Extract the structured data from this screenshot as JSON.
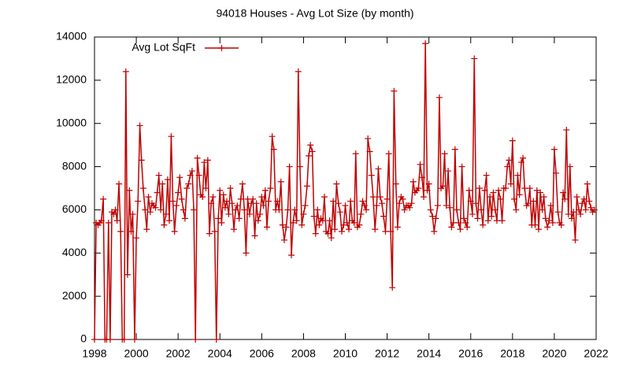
{
  "chart_data": {
    "type": "line",
    "title": "94018 Houses - Avg Lot Size (by month)",
    "xlim": [
      1998,
      2022
    ],
    "xticks": [
      1998,
      2000,
      2002,
      2004,
      2006,
      2008,
      2010,
      2012,
      2014,
      2016,
      2018,
      2020,
      2022
    ],
    "ylim": [
      0,
      14000
    ],
    "yticks": [
      0,
      2000,
      4000,
      6000,
      8000,
      10000,
      12000,
      14000
    ],
    "legend": "top left",
    "x": [
      1998,
      1998.08,
      1998.17,
      1998.25,
      1998.33,
      1998.42,
      1998.5,
      1998.58,
      1998.67,
      1998.75,
      1998.83,
      1998.92,
      1999,
      1999.08,
      1999.17,
      1999.25,
      1999.33,
      1999.42,
      1999.5,
      1999.58,
      1999.67,
      1999.75,
      1999.83,
      1999.92,
      2000,
      2000.08,
      2000.17,
      2000.25,
      2000.33,
      2000.42,
      2000.5,
      2000.58,
      2000.67,
      2000.75,
      2000.83,
      2000.92,
      2001,
      2001.08,
      2001.17,
      2001.25,
      2001.33,
      2001.42,
      2001.5,
      2001.58,
      2001.67,
      2001.75,
      2001.83,
      2001.92,
      2002,
      2002.08,
      2002.17,
      2002.25,
      2002.33,
      2002.42,
      2002.5,
      2002.58,
      2002.67,
      2002.75,
      2002.83,
      2002.92,
      2003,
      2003.08,
      2003.17,
      2003.25,
      2003.33,
      2003.42,
      2003.5,
      2003.58,
      2003.67,
      2003.75,
      2003.83,
      2003.92,
      2004,
      2004.08,
      2004.17,
      2004.25,
      2004.33,
      2004.42,
      2004.5,
      2004.58,
      2004.67,
      2004.75,
      2004.83,
      2004.92,
      2005,
      2005.08,
      2005.17,
      2005.25,
      2005.33,
      2005.42,
      2005.5,
      2005.58,
      2005.67,
      2005.75,
      2005.83,
      2005.92,
      2006,
      2006.08,
      2006.17,
      2006.25,
      2006.33,
      2006.42,
      2006.5,
      2006.58,
      2006.67,
      2006.75,
      2006.83,
      2006.92,
      2007,
      2007.08,
      2007.17,
      2007.25,
      2007.33,
      2007.42,
      2007.5,
      2007.58,
      2007.67,
      2007.75,
      2007.83,
      2007.92,
      2008,
      2008.08,
      2008.17,
      2008.25,
      2008.33,
      2008.42,
      2008.5,
      2008.58,
      2008.67,
      2008.75,
      2008.83,
      2008.92,
      2009,
      2009.08,
      2009.17,
      2009.25,
      2009.33,
      2009.42,
      2009.5,
      2009.58,
      2009.67,
      2009.75,
      2009.83,
      2009.92,
      2010,
      2010.08,
      2010.17,
      2010.25,
      2010.33,
      2010.42,
      2010.5,
      2010.58,
      2010.67,
      2010.75,
      2010.83,
      2010.92,
      2011,
      2011.08,
      2011.17,
      2011.25,
      2011.33,
      2011.42,
      2011.5,
      2011.58,
      2011.67,
      2011.75,
      2011.83,
      2011.92,
      2012,
      2012.08,
      2012.17,
      2012.25,
      2012.33,
      2012.42,
      2012.5,
      2012.58,
      2012.67,
      2012.75,
      2012.83,
      2012.92,
      2013,
      2013.08,
      2013.17,
      2013.25,
      2013.33,
      2013.42,
      2013.5,
      2013.58,
      2013.67,
      2013.75,
      2013.83,
      2013.92,
      2014,
      2014.08,
      2014.17,
      2014.25,
      2014.33,
      2014.42,
      2014.5,
      2014.58,
      2014.67,
      2014.75,
      2014.83,
      2014.92,
      2015,
      2015.08,
      2015.17,
      2015.25,
      2015.33,
      2015.42,
      2015.5,
      2015.58,
      2015.67,
      2015.75,
      2015.83,
      2015.92,
      2016,
      2016.08,
      2016.17,
      2016.25,
      2016.33,
      2016.42,
      2016.5,
      2016.58,
      2016.67,
      2016.75,
      2016.83,
      2016.92,
      2017,
      2017.08,
      2017.17,
      2017.25,
      2017.33,
      2017.42,
      2017.5,
      2017.58,
      2017.67,
      2017.75,
      2017.83,
      2017.92,
      2018,
      2018.08,
      2018.17,
      2018.25,
      2018.33,
      2018.42,
      2018.5,
      2018.58,
      2018.67,
      2018.75,
      2018.83,
      2018.92,
      2019,
      2019.08,
      2019.17,
      2019.25,
      2019.33,
      2019.42,
      2019.5,
      2019.58,
      2019.67,
      2019.75,
      2019.83,
      2019.92,
      2020,
      2020.08,
      2020.17,
      2020.25,
      2020.33,
      2020.42,
      2020.5,
      2020.58,
      2020.67,
      2020.75,
      2020.83,
      2020.92,
      2021,
      2021.08,
      2021.17,
      2021.25,
      2021.33,
      2021.42,
      2021.5,
      2021.58,
      2021.67,
      2021.75,
      2021.83,
      2021.92
    ],
    "series": [
      {
        "name": "Avg Lot SqFt",
        "color": "#c00000",
        "values": [
          0,
          5400,
          5300,
          5400,
          5500,
          6500,
          0,
          0,
          5400,
          0,
          5900,
          5800,
          6000,
          5500,
          7200,
          5000,
          0,
          0,
          12400,
          3000,
          6900,
          5000,
          5800,
          0,
          4700,
          6400,
          9900,
          8300,
          7000,
          6000,
          5100,
          6600,
          5900,
          6300,
          6200,
          6100,
          6800,
          7600,
          6000,
          7200,
          5300,
          5800,
          7400,
          5500,
          9400,
          6400,
          5000,
          6200,
          6800,
          7500,
          6500,
          6000,
          5600,
          7000,
          7200,
          7600,
          7800,
          6000,
          0,
          8400,
          7600,
          6700,
          6600,
          8200,
          7000,
          8300,
          4900,
          6300,
          6600,
          5000,
          0,
          5600,
          6900,
          5400,
          6700,
          6100,
          6400,
          5800,
          7000,
          6300,
          5100,
          6000,
          6200,
          5600,
          6500,
          7200,
          6000,
          4000,
          6500,
          5800,
          6300,
          6500,
          4800,
          6300,
          5500,
          5800,
          6600,
          6200,
          6900,
          5200,
          6400,
          7000,
          9400,
          8800,
          6000,
          6400,
          6000,
          7300,
          5300,
          4600,
          5200,
          6000,
          8000,
          3900,
          5400,
          6000,
          5500,
          12400,
          8000,
          5300,
          5800,
          6200,
          7100,
          8500,
          9000,
          8700,
          5700,
          4900,
          6000,
          5300,
          5600,
          5500,
          6600,
          5000,
          4900,
          5500,
          4700,
          6400,
          5100,
          7200,
          6300,
          5900,
          5000,
          5300,
          6200,
          5400,
          5100,
          6400,
          5500,
          5400,
          8600,
          5200,
          5300,
          5800,
          6400,
          6200,
          6000,
          9300,
          8700,
          7600,
          6600,
          5100,
          6200,
          7900,
          6600,
          6300,
          5700,
          5000,
          6500,
          8600,
          5000,
          2400,
          11500,
          7200,
          5200,
          6300,
          6600,
          6500,
          6000,
          6200,
          6200,
          6100,
          6300,
          7300,
          6800,
          6900,
          7000,
          8100,
          7500,
          6600,
          13700,
          6900,
          7200,
          6000,
          5700,
          5000,
          5600,
          6200,
          11200,
          7000,
          7100,
          8600,
          6200,
          7800,
          6100,
          5200,
          5400,
          8800,
          6000,
          5400,
          5100,
          8000,
          5600,
          5400,
          5200,
          6900,
          6400,
          5800,
          13000,
          6300,
          5600,
          7000,
          6000,
          5300,
          6900,
          7600,
          5500,
          6600,
          5700,
          6800,
          6000,
          5500,
          6900,
          6500,
          5500,
          7000,
          7000,
          8000,
          8300,
          7200,
          9200,
          6500,
          6000,
          7600,
          6700,
          8200,
          8400,
          7000,
          6200,
          6300,
          7000,
          5300,
          6400,
          5300,
          6900,
          5100,
          6800,
          6000,
          6600,
          5600,
          5200,
          5500,
          6200,
          5400,
          8800,
          7700,
          5900,
          5400,
          5300,
          6800,
          6500,
          9700,
          5800,
          8000,
          5600,
          5900,
          4600,
          6600,
          6000,
          5800,
          6300,
          6500,
          6000,
          7200,
          6400,
          6100,
          5900,
          6000
        ]
      }
    ]
  }
}
